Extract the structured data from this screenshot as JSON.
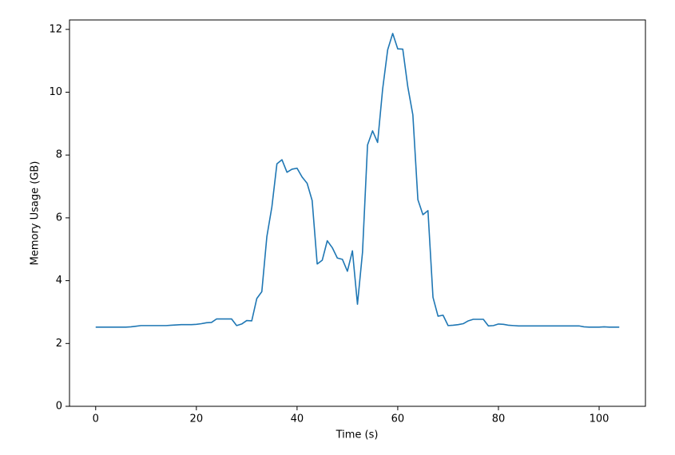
{
  "chart_data": {
    "type": "line",
    "xlabel": "Time (s)",
    "ylabel": "Memory Usage (GB)",
    "x": [
      0,
      1,
      2,
      3,
      4,
      5,
      6,
      7,
      8,
      9,
      10,
      11,
      12,
      13,
      14,
      15,
      16,
      17,
      18,
      19,
      20,
      21,
      22,
      23,
      24,
      25,
      26,
      27,
      28,
      29,
      30,
      31,
      32,
      33,
      34,
      35,
      36,
      37,
      38,
      39,
      40,
      41,
      42,
      43,
      44,
      45,
      46,
      47,
      48,
      49,
      50,
      51,
      52,
      53,
      54,
      55,
      56,
      57,
      58,
      59,
      60,
      61,
      62,
      63,
      64,
      65,
      66,
      67,
      68,
      69,
      70,
      71,
      72,
      73,
      74,
      75,
      76,
      77,
      78,
      79,
      80,
      81,
      82,
      83,
      84,
      85,
      86,
      87,
      88,
      89,
      90,
      91,
      92,
      93,
      94,
      95,
      96,
      97,
      98,
      99,
      100,
      101,
      102,
      103,
      104
    ],
    "series": [
      {
        "color": "#1f77b4",
        "values": [
          2.52,
          2.52,
          2.52,
          2.52,
          2.52,
          2.52,
          2.52,
          2.53,
          2.55,
          2.57,
          2.57,
          2.57,
          2.57,
          2.57,
          2.57,
          2.58,
          2.59,
          2.6,
          2.6,
          2.6,
          2.61,
          2.63,
          2.66,
          2.67,
          2.78,
          2.78,
          2.78,
          2.78,
          2.57,
          2.62,
          2.73,
          2.72,
          3.43,
          3.65,
          5.4,
          6.35,
          7.72,
          7.85,
          7.45,
          7.55,
          7.58,
          7.3,
          7.1,
          6.55,
          4.53,
          4.65,
          5.27,
          5.05,
          4.72,
          4.68,
          4.3,
          4.95,
          3.25,
          4.9,
          8.32,
          8.77,
          8.4,
          10.1,
          11.35,
          11.87,
          11.38,
          11.37,
          10.17,
          9.28,
          6.58,
          6.1,
          6.23,
          3.47,
          2.87,
          2.9,
          2.57,
          2.58,
          2.6,
          2.63,
          2.72,
          2.77,
          2.77,
          2.77,
          2.56,
          2.57,
          2.62,
          2.61,
          2.58,
          2.57,
          2.56,
          2.56,
          2.56,
          2.56,
          2.56,
          2.56,
          2.56,
          2.56,
          2.56,
          2.56,
          2.56,
          2.56,
          2.56,
          2.53,
          2.52,
          2.52,
          2.52,
          2.53,
          2.52,
          2.52,
          2.52
        ]
      }
    ],
    "xlim": [
      -5.2,
      109.2
    ],
    "ylim": [
      0,
      12.3
    ],
    "xticks": [
      0,
      20,
      40,
      60,
      80,
      100
    ],
    "yticks": [
      0,
      2,
      4,
      6,
      8,
      10,
      12
    ]
  }
}
